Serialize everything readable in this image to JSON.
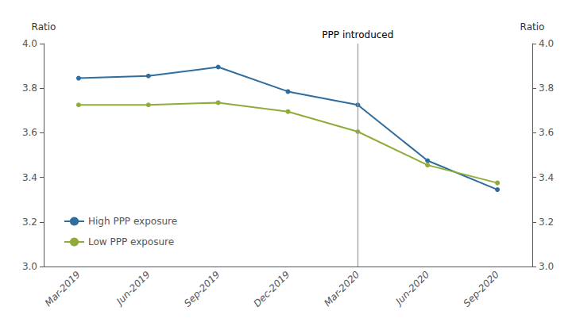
{
  "chart_data": {
    "type": "line",
    "categories": [
      "Mar-2019",
      "Jun-2019",
      "Sep-2019",
      "Dec-2019",
      "Mar-2020",
      "Jun-2020",
      "Sep-2020"
    ],
    "series": [
      {
        "name": "High PPP exposure",
        "color": "#2e6d9e",
        "values": [
          3.845,
          3.855,
          3.895,
          3.785,
          3.725,
          3.475,
          3.345
        ]
      },
      {
        "name": "Low PPP exposure",
        "color": "#8fac3a",
        "values": [
          3.725,
          3.725,
          3.735,
          3.695,
          3.605,
          3.455,
          3.375
        ]
      }
    ],
    "ylabel": "Ratio",
    "y2label": "Ratio",
    "ylim": [
      3.0,
      4.0
    ],
    "yticks": [
      {
        "value": 3.0,
        "label": "3.0"
      },
      3.2,
      3.4,
      3.6,
      3.8,
      {
        "value": 4.0,
        "label": "4.0"
      }
    ],
    "y2lim": [
      3.0,
      4.0
    ],
    "y2ticks": [
      {
        "value": 3.0,
        "label": "3.0"
      },
      3.2,
      3.4,
      3.6,
      3.8,
      {
        "value": 4.0,
        "label": "4.0"
      }
    ],
    "annotations": [
      {
        "x": "Mar-2020",
        "text": "PPP introduced"
      }
    ],
    "legend": "lower left",
    "grid": false,
    "marker": "o"
  }
}
